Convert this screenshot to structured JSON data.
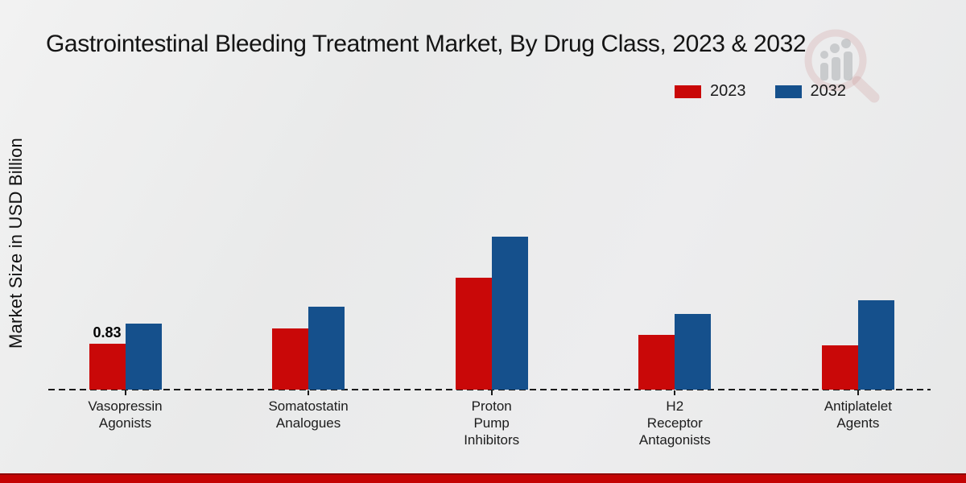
{
  "title": "Gastrointestinal Bleeding Treatment Market, By Drug Class, 2023 & 2032",
  "y_axis_label": "Market Size in USD Billion",
  "legend": {
    "items": [
      {
        "label": "2023",
        "color": "#c90808"
      },
      {
        "label": "2032",
        "color": "#15508c"
      }
    ]
  },
  "annotation": {
    "text": "0.83",
    "series": "2023",
    "category": "Vasopressin Agonists"
  },
  "colors": {
    "series_2023": "#c90808",
    "series_2032": "#15508c",
    "bottom_strip": "#c40404",
    "background": "#e9eaea",
    "baseline": "#1a1a1a"
  },
  "chart_data": {
    "type": "bar",
    "categories": [
      "Vasopressin Agonists",
      "Somatostatin Analogues",
      "Proton Pump Inhibitors",
      "H2 Receptor Antagonists",
      "Antiplatelet Agents"
    ],
    "category_lines": [
      [
        "Vasopressin",
        "Agonists"
      ],
      [
        "Somatostatin",
        "Analogues"
      ],
      [
        "Proton",
        "Pump",
        "Inhibitors"
      ],
      [
        "H2",
        "Receptor",
        "Antagonists"
      ],
      [
        "Antiplatelet",
        "Agents"
      ]
    ],
    "series": [
      {
        "name": "2023",
        "color": "#c90808",
        "values": [
          0.83,
          1.11,
          2.02,
          0.99,
          0.8
        ]
      },
      {
        "name": "2032",
        "color": "#15508c",
        "values": [
          1.19,
          1.5,
          2.77,
          1.37,
          1.62
        ]
      }
    ],
    "title": "Gastrointestinal Bleeding Treatment Market, By Drug Class, 2023 & 2032",
    "xlabel": "",
    "ylabel": "Market Size in USD Billion",
    "ylim": [
      0,
      3
    ],
    "grid": false,
    "legend_position": "upper right",
    "baseline_style": "dashed",
    "data_labels": [
      {
        "series": "2023",
        "category_index": 0,
        "text": "0.83"
      }
    ]
  }
}
